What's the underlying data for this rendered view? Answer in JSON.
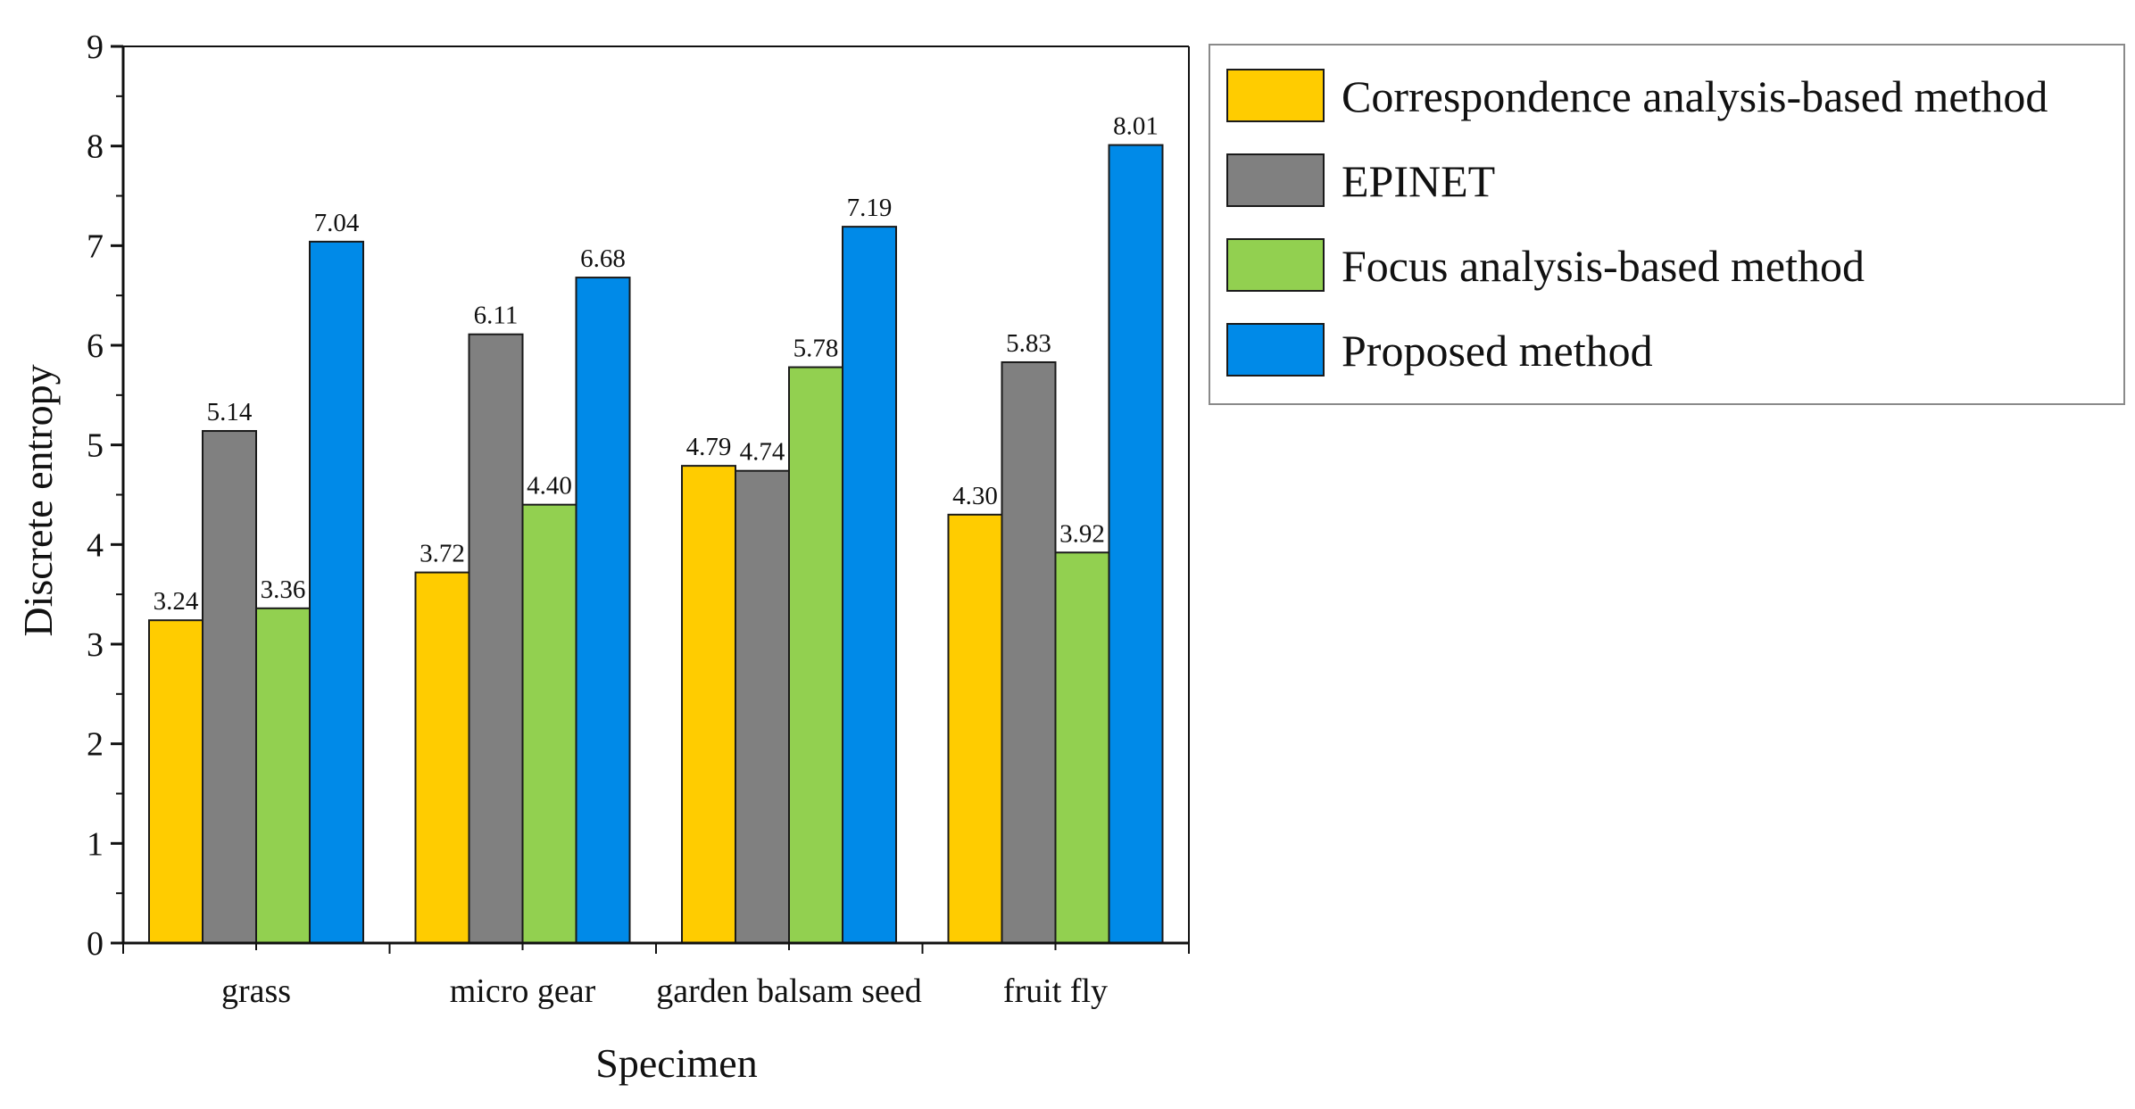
{
  "chart_data": {
    "type": "bar",
    "xlabel": "Specimen",
    "ylabel": "Discrete entropy",
    "ylim": [
      0,
      9
    ],
    "yticks": [
      0,
      1,
      2,
      3,
      4,
      5,
      6,
      7,
      8,
      9
    ],
    "categories": [
      "grass",
      "micro gear",
      "garden balsam seed",
      "fruit fly"
    ],
    "series": [
      {
        "name": "Correspondence analysis-based method",
        "color": "#ffcc00",
        "values": [
          3.24,
          3.72,
          4.79,
          4.3
        ],
        "labels": [
          "3.24",
          "3.72",
          "4.79",
          "4.30"
        ]
      },
      {
        "name": "EPINET",
        "color": "#808080",
        "values": [
          5.14,
          6.11,
          4.74,
          5.83
        ],
        "labels": [
          "5.14",
          "6.11",
          "4.74",
          "5.83"
        ]
      },
      {
        "name": "Focus analysis-based method",
        "color": "#92d050",
        "values": [
          3.36,
          4.4,
          5.78,
          3.92
        ],
        "labels": [
          "3.36",
          "4.40",
          "5.78",
          "3.92"
        ]
      },
      {
        "name": "Proposed method",
        "color": "#008ae8",
        "values": [
          7.04,
          6.68,
          7.19,
          8.01
        ],
        "labels": [
          "7.04",
          "6.68",
          "7.19",
          "8.01"
        ]
      }
    ],
    "grid": false,
    "legend": "right"
  }
}
